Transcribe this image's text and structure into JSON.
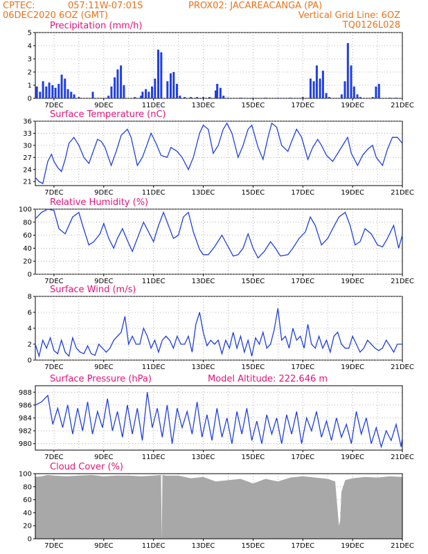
{
  "header": {
    "line1_left": "CPTEC:",
    "line1_coords": "057:11W-07:01S",
    "line1_station": "PROX02: JACAREACANGA (PA)",
    "line2_left": "06DEC2020 6OZ (GMT)",
    "line2_right": "Vertical Grid Line: 6OZ",
    "line3_right": "TQ0126L028"
  },
  "x_axis": {
    "date_labels": [
      "7DEC",
      "9DEC",
      "11DEC",
      "13DEC",
      "15DEC",
      "17DEC",
      "19DEC",
      "21DEC"
    ],
    "date_label_days": [
      1,
      3,
      5,
      7,
      9,
      11,
      13,
      15
    ],
    "range_days": [
      0.25,
      15
    ]
  },
  "colors": {
    "header": "#e8731a",
    "panel_title": "#e0147a",
    "series": "#1f3fe0",
    "cloud_fill": "#a8a8a8",
    "grid": "#9a9a9a"
  },
  "chart_data": [
    {
      "id": "precip",
      "type": "bar",
      "title": "Precipitation (mm/h)",
      "ylim": [
        0,
        5
      ],
      "yticks": [
        "0",
        "1",
        "2",
        "3",
        "4",
        "5"
      ],
      "x": [
        0.31,
        0.44,
        0.56,
        0.69,
        0.81,
        0.94,
        1.06,
        1.19,
        1.31,
        1.44,
        1.56,
        1.69,
        1.81,
        2.0,
        2.56,
        3.19,
        3.31,
        3.44,
        3.56,
        3.69,
        3.81,
        4.25,
        4.5,
        4.56,
        4.69,
        4.81,
        4.94,
        5.06,
        5.19,
        5.31,
        5.56,
        5.69,
        5.81,
        5.94,
        6.06,
        6.25,
        6.5,
        6.75,
        7.0,
        7.25,
        7.5,
        7.56,
        7.69,
        7.81,
        8.0,
        8.5,
        9.0,
        9.5,
        10.0,
        10.5,
        11.0,
        11.31,
        11.44,
        11.56,
        11.69,
        11.81,
        11.94,
        12.06,
        12.56,
        12.69,
        12.81,
        12.94,
        13.06,
        13.19,
        13.31,
        13.81,
        13.94,
        14.06,
        14.5,
        14.75
      ],
      "values": [
        0.9,
        0.5,
        1.3,
        0.9,
        1.2,
        1.0,
        0.8,
        1.1,
        1.8,
        1.5,
        0.7,
        0.5,
        0.3,
        0.1,
        0.5,
        0.2,
        0.9,
        1.6,
        2.2,
        2.5,
        1.0,
        0.1,
        0.2,
        0.5,
        0.7,
        0.5,
        0.9,
        1.5,
        3.7,
        3.5,
        1.3,
        1.9,
        2.0,
        1.1,
        0.2,
        0.1,
        0.1,
        0.1,
        0.1,
        0.1,
        0.6,
        1.1,
        0.8,
        0.2,
        0.05,
        0.05,
        0.05,
        0.05,
        0.05,
        0.05,
        0.1,
        1.5,
        1.3,
        2.5,
        1.5,
        2.1,
        0.4,
        0.1,
        0.3,
        1.3,
        4.2,
        2.5,
        0.9,
        0.3,
        0.1,
        0.1,
        0.9,
        1.1,
        0.05,
        0.05
      ]
    },
    {
      "id": "temp",
      "type": "line",
      "title": "Surface Temperature (nC)",
      "ylim": [
        20,
        36
      ],
      "yticks": [
        "21",
        "24",
        "27",
        "30",
        "33",
        "36"
      ],
      "x": [
        0.25,
        0.4,
        0.55,
        0.75,
        0.9,
        1.0,
        1.15,
        1.3,
        1.45,
        1.6,
        1.8,
        2.0,
        2.2,
        2.4,
        2.55,
        2.75,
        2.9,
        3.05,
        3.3,
        3.5,
        3.7,
        3.95,
        4.1,
        4.35,
        4.55,
        4.7,
        4.9,
        5.1,
        5.3,
        5.55,
        5.7,
        5.95,
        6.15,
        6.4,
        6.6,
        6.85,
        7.0,
        7.2,
        7.4,
        7.6,
        7.8,
        7.95,
        8.15,
        8.4,
        8.6,
        8.8,
        8.95,
        9.2,
        9.4,
        9.6,
        9.75,
        9.95,
        10.15,
        10.4,
        10.55,
        10.75,
        10.95,
        11.2,
        11.4,
        11.6,
        11.75,
        11.95,
        12.2,
        12.4,
        12.6,
        12.8,
        12.95,
        13.2,
        13.4,
        13.6,
        13.8,
        13.95,
        14.2,
        14.4,
        14.6,
        14.8,
        15.0
      ],
      "values": [
        22.0,
        21.0,
        20.5,
        26.0,
        27.8,
        26.0,
        24.5,
        23.5,
        26.5,
        30.5,
        32.0,
        30.0,
        27.0,
        25.5,
        28.0,
        31.5,
        31.0,
        29.5,
        25.0,
        28.5,
        32.5,
        34.0,
        32.0,
        25.0,
        27.0,
        29.5,
        33.0,
        30.5,
        27.5,
        27.0,
        29.5,
        28.5,
        27.0,
        24.0,
        27.0,
        33.0,
        35.0,
        34.0,
        28.0,
        30.0,
        34.0,
        35.5,
        33.0,
        27.0,
        30.0,
        34.0,
        35.0,
        29.5,
        26.5,
        32.0,
        35.5,
        34.5,
        30.0,
        28.5,
        31.0,
        34.0,
        32.0,
        26.5,
        29.5,
        31.5,
        30.0,
        27.5,
        26.0,
        28.0,
        30.0,
        32.0,
        28.0,
        25.0,
        27.5,
        29.0,
        30.0,
        27.0,
        25.0,
        29.0,
        32.0,
        32.0,
        30.5
      ]
    },
    {
      "id": "rh",
      "type": "line",
      "title": "Relative Humidity (%)",
      "ylim": [
        0,
        100
      ],
      "yticks": [
        "0",
        "20",
        "40",
        "60",
        "80",
        "100"
      ],
      "x": [
        0.25,
        0.5,
        0.75,
        1.0,
        1.2,
        1.45,
        1.75,
        2.0,
        2.15,
        2.4,
        2.6,
        2.85,
        3.0,
        3.2,
        3.4,
        3.55,
        3.75,
        3.95,
        4.15,
        4.4,
        4.6,
        4.8,
        5.0,
        5.2,
        5.4,
        5.6,
        5.8,
        6.0,
        6.2,
        6.4,
        6.6,
        6.85,
        7.0,
        7.2,
        7.45,
        7.75,
        8.0,
        8.2,
        8.4,
        8.6,
        8.8,
        9.0,
        9.2,
        9.45,
        9.7,
        9.9,
        10.1,
        10.4,
        10.6,
        10.85,
        11.1,
        11.3,
        11.5,
        11.75,
        12.0,
        12.2,
        12.45,
        12.7,
        12.9,
        13.1,
        13.3,
        13.5,
        13.75,
        14.0,
        14.2,
        14.4,
        14.65,
        14.85,
        15.0
      ],
      "values": [
        85,
        95,
        100,
        98,
        70,
        62,
        88,
        95,
        75,
        45,
        50,
        62,
        78,
        55,
        40,
        55,
        70,
        52,
        35,
        60,
        80,
        65,
        50,
        75,
        95,
        75,
        55,
        60,
        88,
        95,
        65,
        38,
        30,
        30,
        42,
        60,
        42,
        28,
        30,
        40,
        62,
        40,
        25,
        35,
        50,
        40,
        28,
        30,
        40,
        55,
        65,
        88,
        75,
        45,
        55,
        70,
        88,
        95,
        75,
        45,
        50,
        70,
        62,
        45,
        42,
        55,
        75,
        40,
        60
      ]
    },
    {
      "id": "wind",
      "type": "line",
      "title": "Surface Wind (m/s)",
      "ylim": [
        0,
        8
      ],
      "yticks": [
        "0",
        "2",
        "4",
        "6",
        "8"
      ],
      "x": [
        0.25,
        0.4,
        0.55,
        0.7,
        0.85,
        1.0,
        1.15,
        1.3,
        1.45,
        1.6,
        1.75,
        1.9,
        2.05,
        2.2,
        2.35,
        2.5,
        2.65,
        2.8,
        2.95,
        3.1,
        3.25,
        3.4,
        3.55,
        3.7,
        3.85,
        4.0,
        4.15,
        4.3,
        4.45,
        4.6,
        4.75,
        4.9,
        5.05,
        5.2,
        5.35,
        5.5,
        5.65,
        5.8,
        5.95,
        6.1,
        6.25,
        6.4,
        6.55,
        6.7,
        6.85,
        7.0,
        7.15,
        7.3,
        7.45,
        7.6,
        7.75,
        7.9,
        8.05,
        8.2,
        8.35,
        8.5,
        8.65,
        8.8,
        8.95,
        9.1,
        9.25,
        9.4,
        9.55,
        9.7,
        9.85,
        10.0,
        10.15,
        10.3,
        10.45,
        10.6,
        10.75,
        10.9,
        11.05,
        11.2,
        11.35,
        11.5,
        11.65,
        11.8,
        11.95,
        12.1,
        12.25,
        12.4,
        12.55,
        12.7,
        12.85,
        13.0,
        13.15,
        13.3,
        13.45,
        13.6,
        13.75,
        13.9,
        14.05,
        14.2,
        14.35,
        14.5,
        14.65,
        14.8,
        15.0
      ],
      "values": [
        2.0,
        0.5,
        2.5,
        1.5,
        2.8,
        1.2,
        0.8,
        2.5,
        1.0,
        0.5,
        2.8,
        1.5,
        1.0,
        0.8,
        1.8,
        0.8,
        0.6,
        2.0,
        1.5,
        1.0,
        1.5,
        2.5,
        3.0,
        3.5,
        5.5,
        2.0,
        3.0,
        2.0,
        2.0,
        4.0,
        3.0,
        1.5,
        2.5,
        1.0,
        2.5,
        3.0,
        2.5,
        1.5,
        3.0,
        2.0,
        2.0,
        3.0,
        1.0,
        4.5,
        6.0,
        3.5,
        1.8,
        2.5,
        2.0,
        2.5,
        0.8,
        2.5,
        1.5,
        3.5,
        1.5,
        3.0,
        1.0,
        2.5,
        0.5,
        2.8,
        2.0,
        3.5,
        1.5,
        2.0,
        3.8,
        6.5,
        2.5,
        3.0,
        1.5,
        4.0,
        2.5,
        3.0,
        1.5,
        4.5,
        2.0,
        1.5,
        3.0,
        1.5,
        2.5,
        1.0,
        3.0,
        3.5,
        2.0,
        1.5,
        1.5,
        3.0,
        2.0,
        1.0,
        1.5,
        2.5,
        2.0,
        1.5,
        1.2,
        1.5,
        2.5,
        1.8,
        1.0,
        2.0,
        2.0
      ]
    },
    {
      "id": "pressure",
      "type": "line",
      "title": "Surface Pressure (hPa)",
      "annotation": "Model Altitude: 222.646 m",
      "ylim": [
        979,
        989
      ],
      "yticks": [
        "980",
        "982",
        "984",
        "986",
        "988"
      ],
      "x": [
        0.25,
        0.5,
        0.75,
        0.95,
        1.15,
        1.35,
        1.55,
        1.75,
        1.95,
        2.15,
        2.35,
        2.55,
        2.75,
        2.95,
        3.15,
        3.35,
        3.55,
        3.75,
        3.95,
        4.15,
        4.35,
        4.55,
        4.75,
        4.95,
        5.15,
        5.35,
        5.55,
        5.75,
        5.95,
        6.15,
        6.35,
        6.55,
        6.75,
        6.95,
        7.15,
        7.35,
        7.55,
        7.75,
        7.95,
        8.15,
        8.35,
        8.55,
        8.75,
        8.95,
        9.15,
        9.35,
        9.55,
        9.75,
        9.95,
        10.15,
        10.35,
        10.55,
        10.75,
        10.95,
        11.15,
        11.35,
        11.55,
        11.75,
        11.95,
        12.15,
        12.35,
        12.55,
        12.75,
        12.95,
        13.15,
        13.35,
        13.55,
        13.75,
        13.95,
        14.15,
        14.35,
        14.55,
        14.75,
        14.95,
        15.0
      ],
      "values": [
        986.0,
        986.5,
        987.5,
        983.0,
        985.5,
        982.5,
        986.0,
        981.5,
        985.5,
        982.0,
        986.5,
        981.5,
        985.0,
        982.5,
        987.0,
        982.0,
        985.0,
        981.0,
        986.0,
        981.5,
        985.5,
        980.5,
        988.0,
        982.5,
        985.5,
        981.0,
        986.0,
        980.0,
        985.5,
        982.5,
        985.0,
        981.5,
        986.5,
        981.0,
        984.5,
        980.5,
        985.5,
        981.0,
        984.0,
        980.0,
        985.0,
        981.5,
        985.5,
        980.5,
        983.5,
        980.0,
        984.5,
        981.5,
        984.0,
        980.0,
        984.5,
        981.5,
        985.0,
        980.0,
        984.0,
        982.0,
        985.0,
        981.0,
        983.5,
        980.5,
        984.0,
        981.0,
        983.0,
        980.0,
        985.0,
        981.5,
        984.0,
        980.0,
        982.5,
        979.5,
        982.0,
        980.5,
        983.0,
        979.5,
        981.0
      ]
    },
    {
      "id": "cloud",
      "type": "area",
      "title": "Cloud Cover (%)",
      "ylim": [
        0,
        100
      ],
      "yticks": [
        "0",
        "20",
        "40",
        "60",
        "80",
        "100"
      ],
      "x": [
        0.25,
        0.5,
        0.75,
        1.0,
        1.5,
        2.0,
        2.5,
        3.0,
        3.5,
        4.0,
        4.5,
        5.0,
        5.3,
        5.33,
        5.36,
        5.5,
        6.0,
        6.5,
        7.0,
        7.5,
        8.0,
        8.5,
        9.0,
        9.5,
        10.0,
        10.5,
        11.0,
        11.5,
        12.0,
        12.3,
        12.45,
        12.5,
        12.55,
        12.7,
        13.0,
        13.5,
        14.0,
        14.5,
        15.0
      ],
      "values": [
        95,
        96,
        98,
        97,
        96,
        97,
        98,
        96,
        97,
        97,
        96,
        97,
        98,
        0,
        98,
        97,
        97,
        93,
        95,
        88,
        90,
        92,
        85,
        92,
        88,
        94,
        96,
        94,
        92,
        88,
        20,
        28,
        72,
        90,
        93,
        95,
        94,
        96,
        95
      ]
    }
  ]
}
